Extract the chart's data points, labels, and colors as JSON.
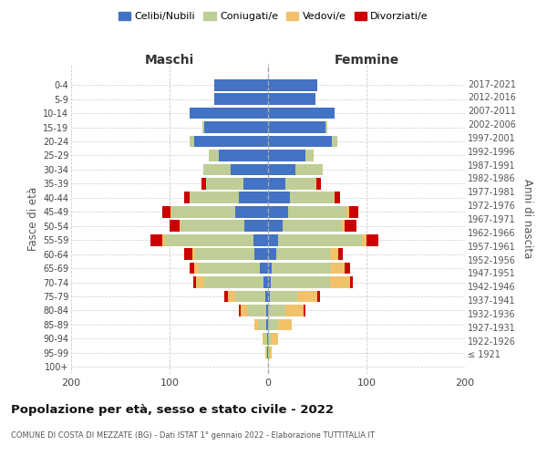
{
  "age_groups": [
    "100+",
    "95-99",
    "90-94",
    "85-89",
    "80-84",
    "75-79",
    "70-74",
    "65-69",
    "60-64",
    "55-59",
    "50-54",
    "45-49",
    "40-44",
    "35-39",
    "30-34",
    "25-29",
    "20-24",
    "15-19",
    "10-14",
    "5-9",
    "0-4"
  ],
  "birth_years": [
    "≤ 1921",
    "1922-1926",
    "1927-1931",
    "1932-1936",
    "1937-1941",
    "1942-1946",
    "1947-1951",
    "1952-1956",
    "1957-1961",
    "1962-1966",
    "1967-1971",
    "1972-1976",
    "1977-1981",
    "1982-1986",
    "1987-1991",
    "1992-1996",
    "1997-2001",
    "2002-2006",
    "2007-2011",
    "2012-2016",
    "2017-2021"
  ],
  "colors": {
    "celibe": "#4472C4",
    "coniugato": "#BFCE96",
    "vedovo": "#F2C26B",
    "divorziato": "#CC0000"
  },
  "maschi": {
    "celibe": [
      0,
      1,
      1,
      2,
      2,
      3,
      5,
      8,
      14,
      15,
      24,
      33,
      30,
      25,
      38,
      50,
      75,
      65,
      80,
      55,
      55
    ],
    "coniugato": [
      0,
      1,
      3,
      8,
      18,
      30,
      60,
      62,
      60,
      90,
      65,
      65,
      50,
      38,
      28,
      10,
      5,
      2,
      0,
      0,
      0
    ],
    "vedovo": [
      0,
      1,
      2,
      4,
      8,
      8,
      8,
      5,
      3,
      2,
      1,
      1,
      0,
      0,
      0,
      0,
      0,
      0,
      0,
      0,
      0
    ],
    "divorziato": [
      0,
      0,
      0,
      0,
      2,
      3,
      3,
      5,
      8,
      12,
      10,
      8,
      5,
      5,
      0,
      0,
      0,
      0,
      0,
      0,
      0
    ]
  },
  "femmine": {
    "nubile": [
      0,
      0,
      0,
      0,
      0,
      2,
      3,
      4,
      8,
      10,
      15,
      20,
      22,
      18,
      28,
      38,
      65,
      58,
      68,
      48,
      50
    ],
    "coniugata": [
      0,
      2,
      4,
      10,
      18,
      28,
      60,
      60,
      55,
      85,
      60,
      60,
      45,
      30,
      28,
      8,
      5,
      2,
      0,
      0,
      0
    ],
    "vedova": [
      0,
      2,
      6,
      14,
      18,
      20,
      20,
      14,
      8,
      5,
      3,
      2,
      1,
      1,
      0,
      0,
      0,
      0,
      0,
      0,
      0
    ],
    "divorziata": [
      0,
      0,
      0,
      0,
      2,
      3,
      3,
      5,
      5,
      12,
      12,
      10,
      5,
      5,
      0,
      0,
      0,
      0,
      0,
      0,
      0
    ]
  },
  "title": "Popolazione per età, sesso e stato civile - 2022",
  "subtitle": "COMUNE DI COSTA DI MEZZATE (BG) - Dati ISTAT 1° gennaio 2022 - Elaborazione TUTTITALIA.IT",
  "xlabel_left": "Maschi",
  "xlabel_right": "Femmine",
  "ylabel_left": "Fasce di età",
  "ylabel_right": "Anni di nascita",
  "xlim": 200,
  "background_color": "#ffffff",
  "grid_color": "#cccccc"
}
